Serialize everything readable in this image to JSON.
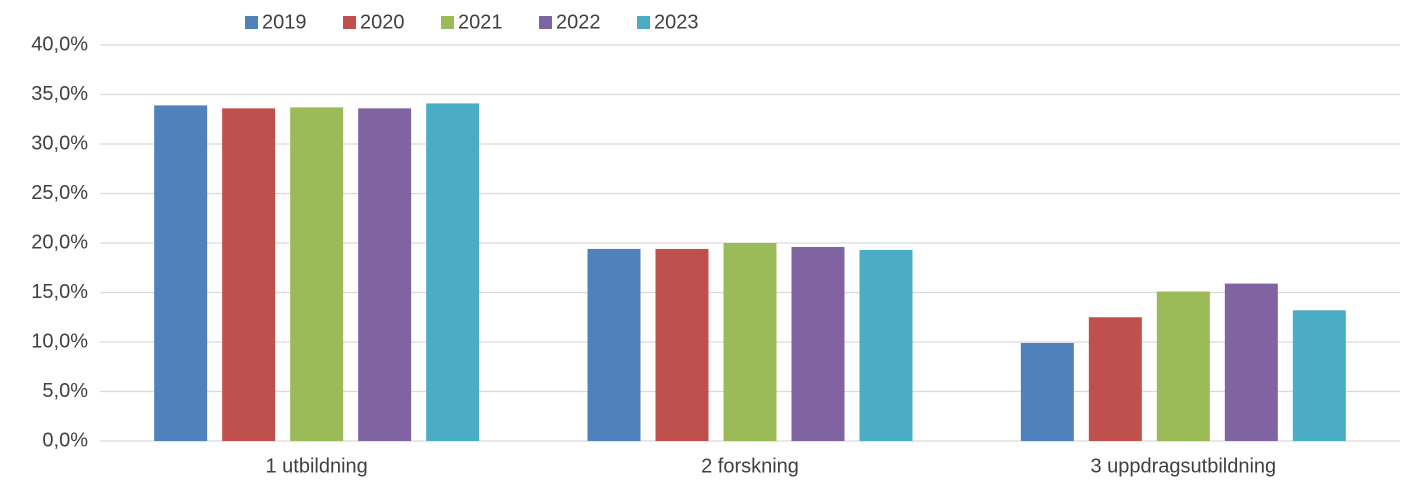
{
  "chart_data": {
    "type": "bar",
    "categories": [
      "1 utbildning",
      "2 forskning",
      "3 uppdragsutbildning"
    ],
    "series": [
      {
        "name": "2019",
        "color": "#4f81bd",
        "values": [
          33.9,
          19.4,
          9.9
        ]
      },
      {
        "name": "2020",
        "color": "#c0504d",
        "values": [
          33.6,
          19.4,
          12.5
        ]
      },
      {
        "name": "2021",
        "color": "#9bbb59",
        "values": [
          33.7,
          20.0,
          15.1
        ]
      },
      {
        "name": "2022",
        "color": "#8064a2",
        "values": [
          33.6,
          19.6,
          15.9
        ]
      },
      {
        "name": "2023",
        "color": "#4bacc6",
        "values": [
          34.1,
          19.3,
          13.2
        ]
      }
    ],
    "ylim": [
      0,
      40
    ],
    "yticks": [
      {
        "value": 0,
        "label": "0,0%"
      },
      {
        "value": 5,
        "label": "5,0%"
      },
      {
        "value": 10,
        "label": "10,0%"
      },
      {
        "value": 15,
        "label": "15,0%"
      },
      {
        "value": 20,
        "label": "20,0%"
      },
      {
        "value": 25,
        "label": "25,0%"
      },
      {
        "value": 30,
        "label": "30,0%"
      },
      {
        "value": 35,
        "label": "35,0%"
      },
      {
        "value": 40,
        "label": "40,0%"
      }
    ],
    "grid": true,
    "legend": "top"
  }
}
